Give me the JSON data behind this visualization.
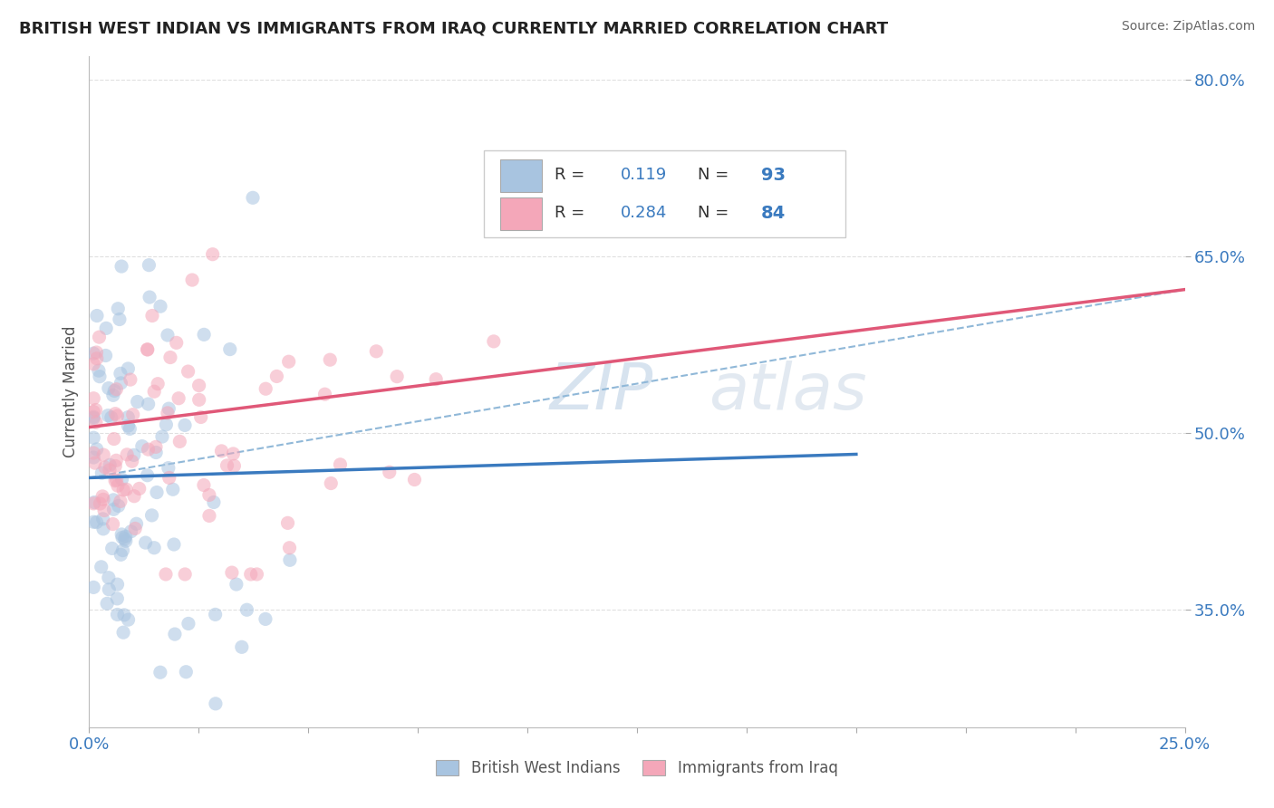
{
  "title": "BRITISH WEST INDIAN VS IMMIGRANTS FROM IRAQ CURRENTLY MARRIED CORRELATION CHART",
  "source": "Source: ZipAtlas.com",
  "ylabel": "Currently Married",
  "xlim": [
    0.0,
    0.25
  ],
  "ylim": [
    0.25,
    0.82
  ],
  "xtick_positions": [
    0.0,
    0.025,
    0.05,
    0.075,
    0.1,
    0.125,
    0.15,
    0.175,
    0.2,
    0.225,
    0.25
  ],
  "xtick_labels": [
    "0.0%",
    "",
    "",
    "",
    "",
    "",
    "",
    "",
    "",
    "",
    "25.0%"
  ],
  "ytick_positions": [
    0.35,
    0.5,
    0.65,
    0.8
  ],
  "ytick_labels": [
    "35.0%",
    "50.0%",
    "65.0%",
    "80.0%"
  ],
  "series1_color": "#a8c4e0",
  "series2_color": "#f4a7b9",
  "trendline1_color": "#3a7abf",
  "trendline2_color": "#e05878",
  "dashed_line_color": "#90b8d8",
  "background_color": "#ffffff",
  "grid_color": "#cccccc",
  "watermark_color": "#c8d8e8",
  "trendline1_x0": 0.0,
  "trendline1_y0": 0.462,
  "trendline1_x1": 0.175,
  "trendline1_y1": 0.482,
  "trendline2_x0": 0.0,
  "trendline2_y0": 0.505,
  "trendline2_x1": 0.25,
  "trendline2_y1": 0.622,
  "dashline_x0": 0.0,
  "dashline_y0": 0.462,
  "dashline_x1": 0.25,
  "dashline_y1": 0.622
}
